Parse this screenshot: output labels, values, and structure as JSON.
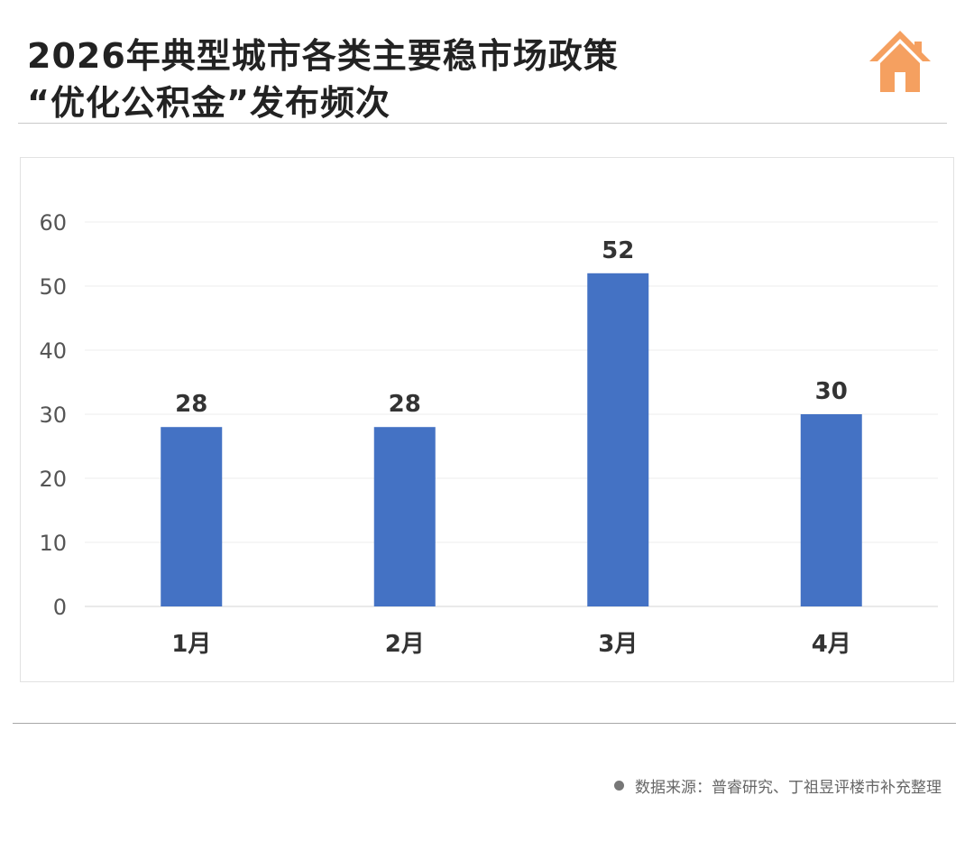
{
  "header": {
    "title_line1": "2026年典型城市各类主要稳市场政策",
    "title_line2": "“优化公积金”发布频次",
    "icon": "house-icon"
  },
  "footer": {
    "source": "数据来源：普睿研究、丁祖昱评楼市补充整理"
  },
  "colors": {
    "bar": "#4472C4",
    "icon": "#F5A060",
    "title": "#222222"
  },
  "chart_data": {
    "type": "bar",
    "categories": [
      "1月",
      "2月",
      "3月",
      "4月"
    ],
    "values": [
      28,
      28,
      52,
      30
    ],
    "data_labels": [
      "28",
      "28",
      "52",
      "30"
    ],
    "ylim": [
      0,
      60
    ],
    "yticks": [
      0,
      10,
      20,
      30,
      40,
      50,
      60
    ],
    "grid": true,
    "legend": "none"
  }
}
